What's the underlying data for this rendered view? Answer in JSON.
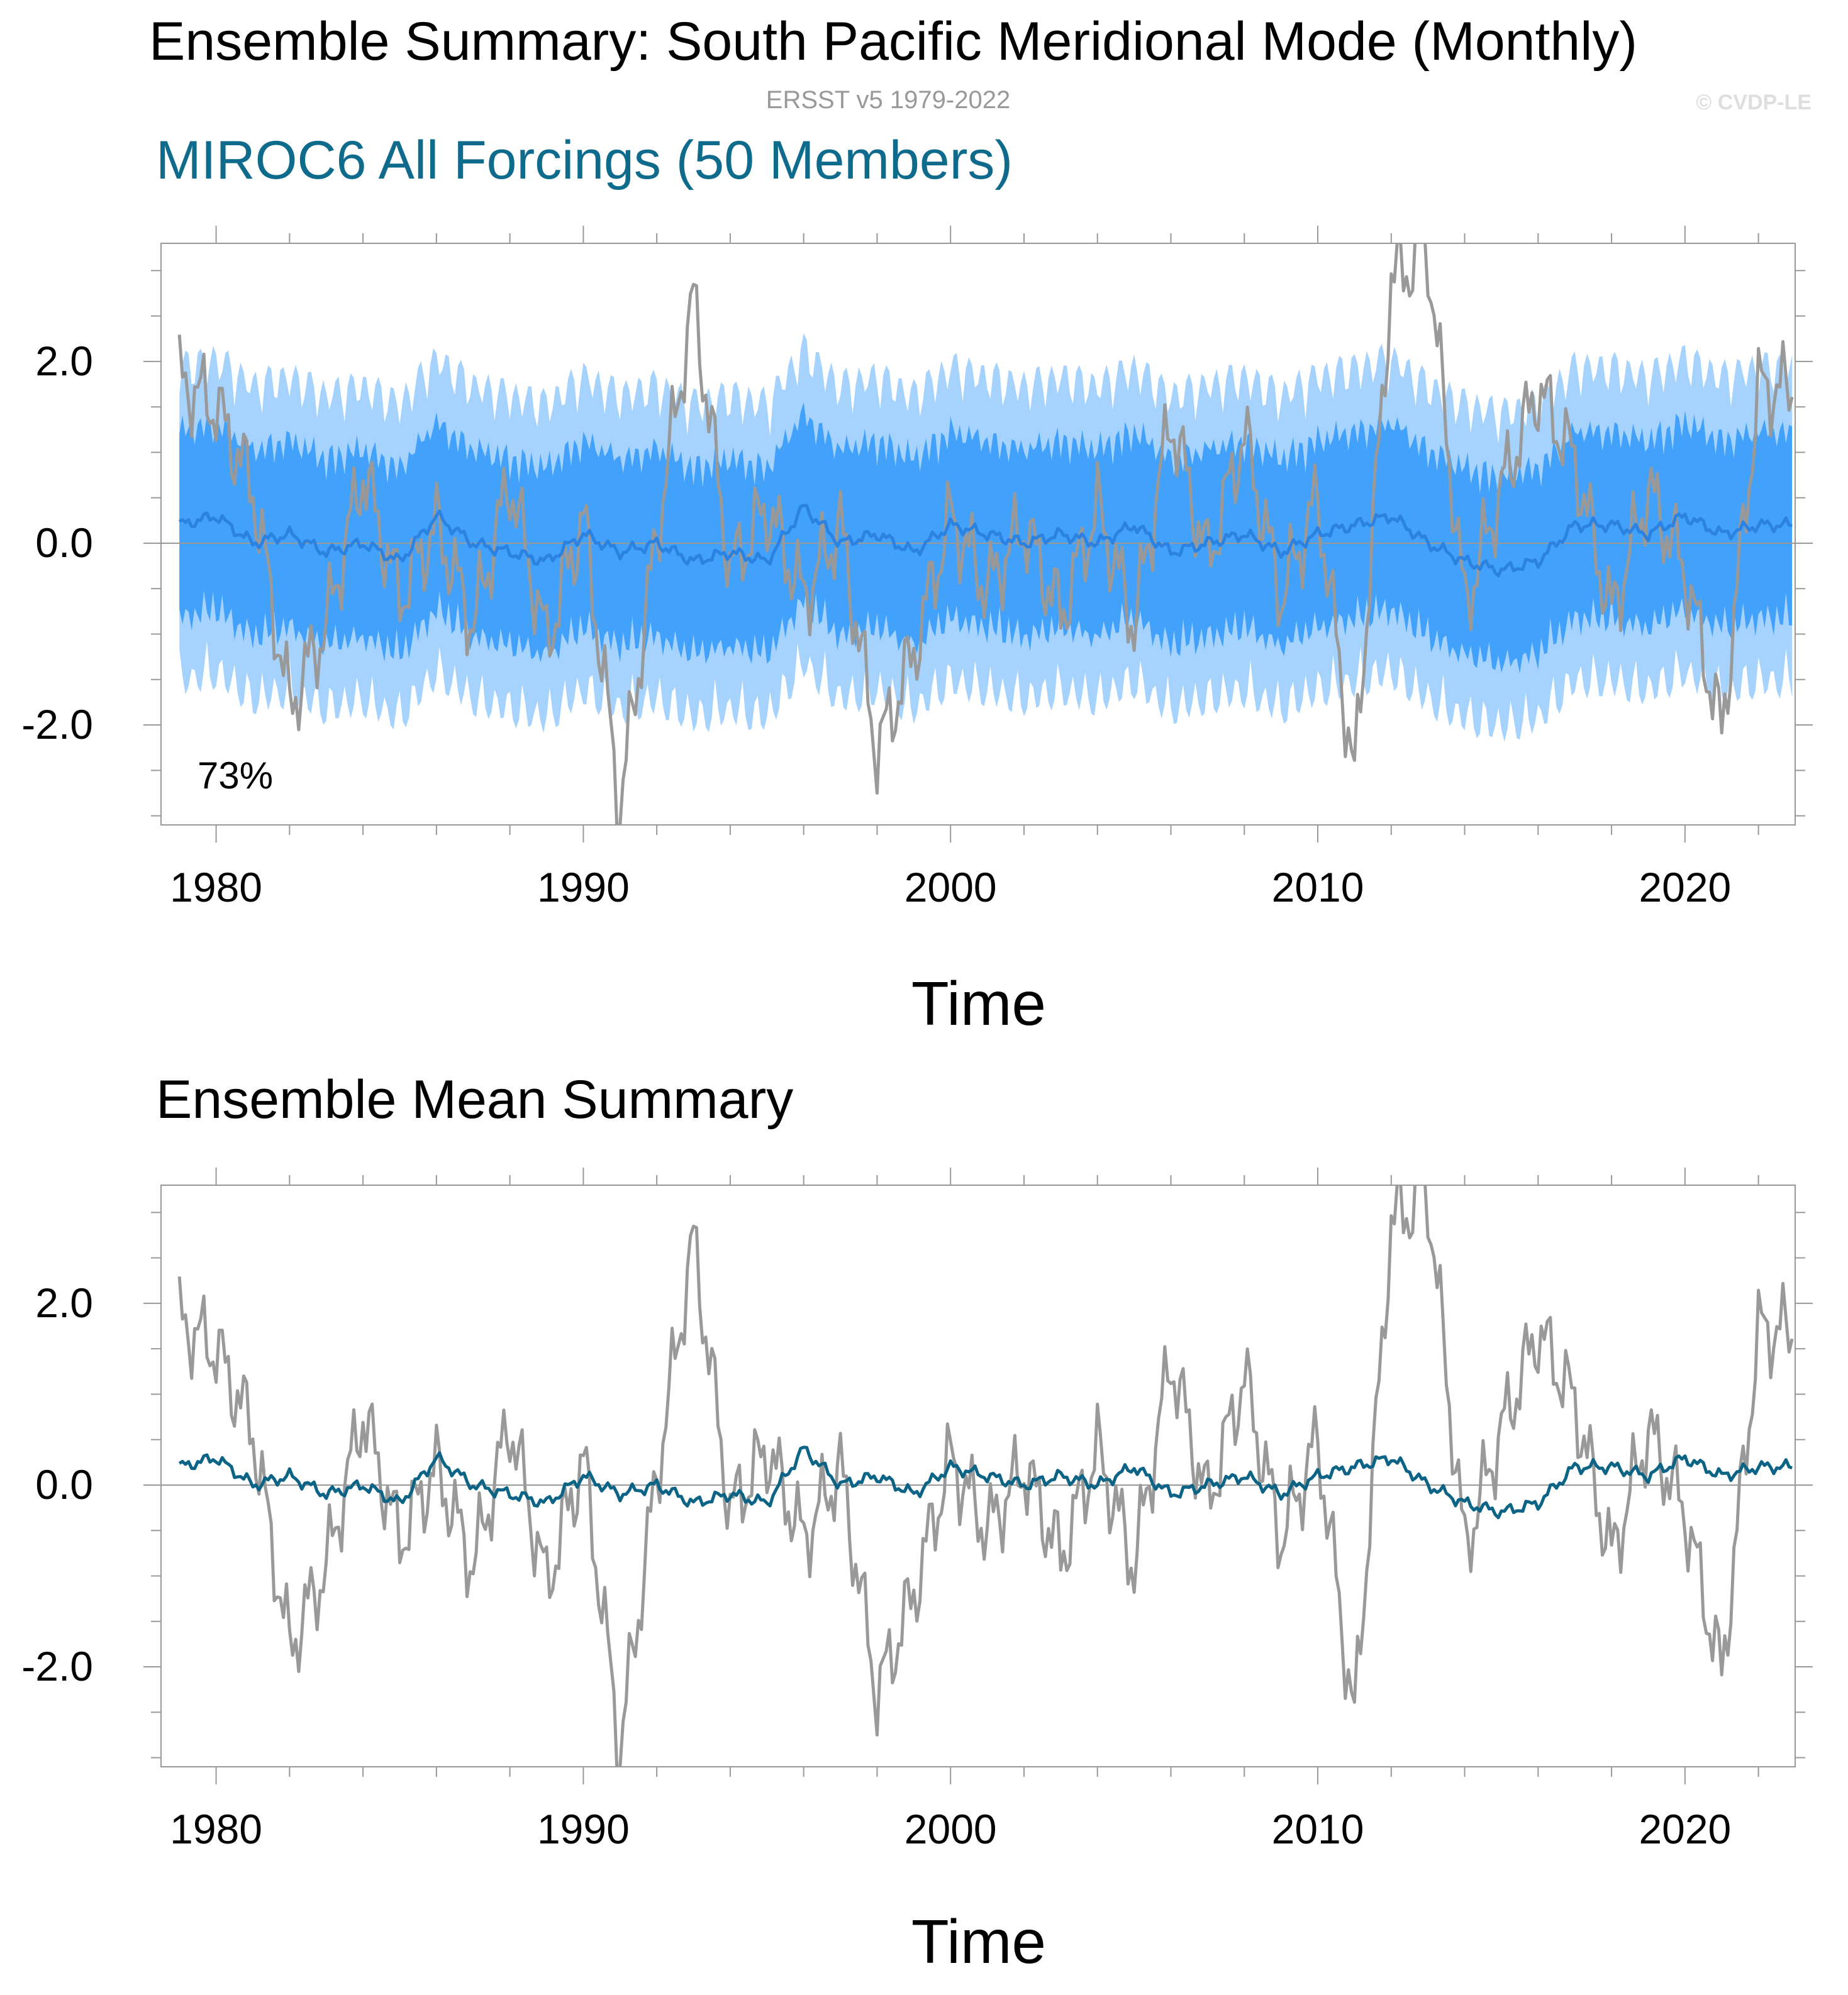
{
  "figure": {
    "title": "Ensemble Summary: South Pacific Meridional Mode (Monthly)",
    "subtitle": "ERSST v5 1979-2022",
    "copyright": "© CVDP-LE",
    "colors": {
      "observations": "#999999",
      "ensemble_mean_top": "#2b82e0",
      "ensemble_mean_bottom": "#0b6385",
      "spread_outer": "#a6d3fd",
      "spread_inner": "#41a1fb",
      "panel_title_top": "#0e6b8c",
      "frame": "#999999"
    }
  },
  "chart_data": [
    {
      "type": "area",
      "panel_title": "MIROC6 All Forcings (50 Members)",
      "annotation": "73%",
      "xlabel": "Time",
      "ylabel": "",
      "xlim": [
        1978.5,
        2023.0
      ],
      "ylim": [
        -3.1,
        3.3
      ],
      "xticks": [
        1980,
        1990,
        2000,
        2010,
        2020
      ],
      "xtick_labels": [
        "1980",
        "1990",
        "2000",
        "2010",
        "2020"
      ],
      "yticks": [
        -2.0,
        0.0,
        2.0
      ],
      "ytick_labels": [
        "-2.0",
        "0.0",
        "2.0"
      ],
      "series": [
        {
          "name": "Observations (ERSST v5)",
          "style": "line",
          "time_step": "yearly sample of monthly series",
          "x": [
            1979,
            1980,
            1981,
            1982,
            1983,
            1984,
            1985,
            1986,
            1987,
            1988,
            1989,
            1990,
            1991,
            1992,
            1993,
            1994,
            1995,
            1996,
            1997,
            1998,
            1999,
            2000,
            2001,
            2002,
            2003,
            2004,
            2005,
            2006,
            2007,
            2008,
            2009,
            2010,
            2011,
            2012,
            2013,
            2014,
            2015,
            2016,
            2017,
            2018,
            2019,
            2020,
            2021,
            2022
          ],
          "values": [
            1.8,
            1.5,
            0.6,
            -1.8,
            -0.9,
            0.8,
            -0.6,
            0.2,
            -0.9,
            0.7,
            -1.1,
            0.3,
            -2.9,
            0.1,
            2.7,
            -0.3,
            0.4,
            -0.6,
            0.2,
            -2.3,
            -1.2,
            0.3,
            -0.5,
            0.2,
            -0.8,
            0.4,
            -0.9,
            1.4,
            -0.2,
            1.2,
            -0.6,
            0.5,
            -2.6,
            2.9,
            3.2,
            -0.7,
            0.6,
            1.7,
            0.9,
            -0.8,
            0.6,
            -0.3,
            -2.1,
            1.7
          ]
        },
        {
          "name": "Ensemble mean",
          "style": "line",
          "x": [
            1979,
            1980,
            1981,
            1982,
            1983,
            1984,
            1985,
            1986,
            1987,
            1988,
            1989,
            1990,
            1991,
            1992,
            1993,
            1994,
            1995,
            1996,
            1997,
            1998,
            1999,
            2000,
            2001,
            2002,
            2003,
            2004,
            2005,
            2006,
            2007,
            2008,
            2009,
            2010,
            2011,
            2012,
            2013,
            2014,
            2015,
            2016,
            2017,
            2018,
            2019,
            2020,
            2021,
            2022
          ],
          "values": [
            0.2,
            0.3,
            0.0,
            0.1,
            -0.1,
            0.0,
            -0.2,
            0.3,
            0.0,
            -0.1,
            -0.2,
            0.1,
            -0.1,
            0.0,
            -0.2,
            -0.1,
            -0.2,
            0.4,
            0.0,
            0.1,
            -0.1,
            0.2,
            0.1,
            0.0,
            0.1,
            0.0,
            0.2,
            -0.1,
            0.0,
            0.1,
            -0.1,
            0.1,
            0.2,
            0.3,
            0.0,
            -0.2,
            -0.3,
            -0.2,
            0.2,
            0.2,
            0.1,
            0.3,
            0.1,
            0.2
          ]
        },
        {
          "name": "Ensemble spread (outer)",
          "style": "band",
          "lower": -1.4,
          "upper": 1.4
        },
        {
          "name": "Ensemble spread (inner)",
          "style": "band",
          "lower": -0.8,
          "upper": 0.8
        }
      ]
    },
    {
      "type": "line",
      "panel_title": "Ensemble Mean Summary",
      "xlabel": "Time",
      "ylabel": "",
      "xlim": [
        1978.5,
        2023.0
      ],
      "ylim": [
        -3.1,
        3.3
      ],
      "xticks": [
        1980,
        1990,
        2000,
        2010,
        2020
      ],
      "xtick_labels": [
        "1980",
        "1990",
        "2000",
        "2010",
        "2020"
      ],
      "yticks": [
        -2.0,
        0.0,
        2.0
      ],
      "ytick_labels": [
        "-2.0",
        "0.0",
        "2.0"
      ],
      "series": [
        {
          "name": "Observations (ERSST v5)",
          "style": "line",
          "ref": "same as panel 1 observations"
        },
        {
          "name": "Ensemble mean",
          "style": "line",
          "ref": "same as panel 1 ensemble mean"
        }
      ]
    }
  ]
}
